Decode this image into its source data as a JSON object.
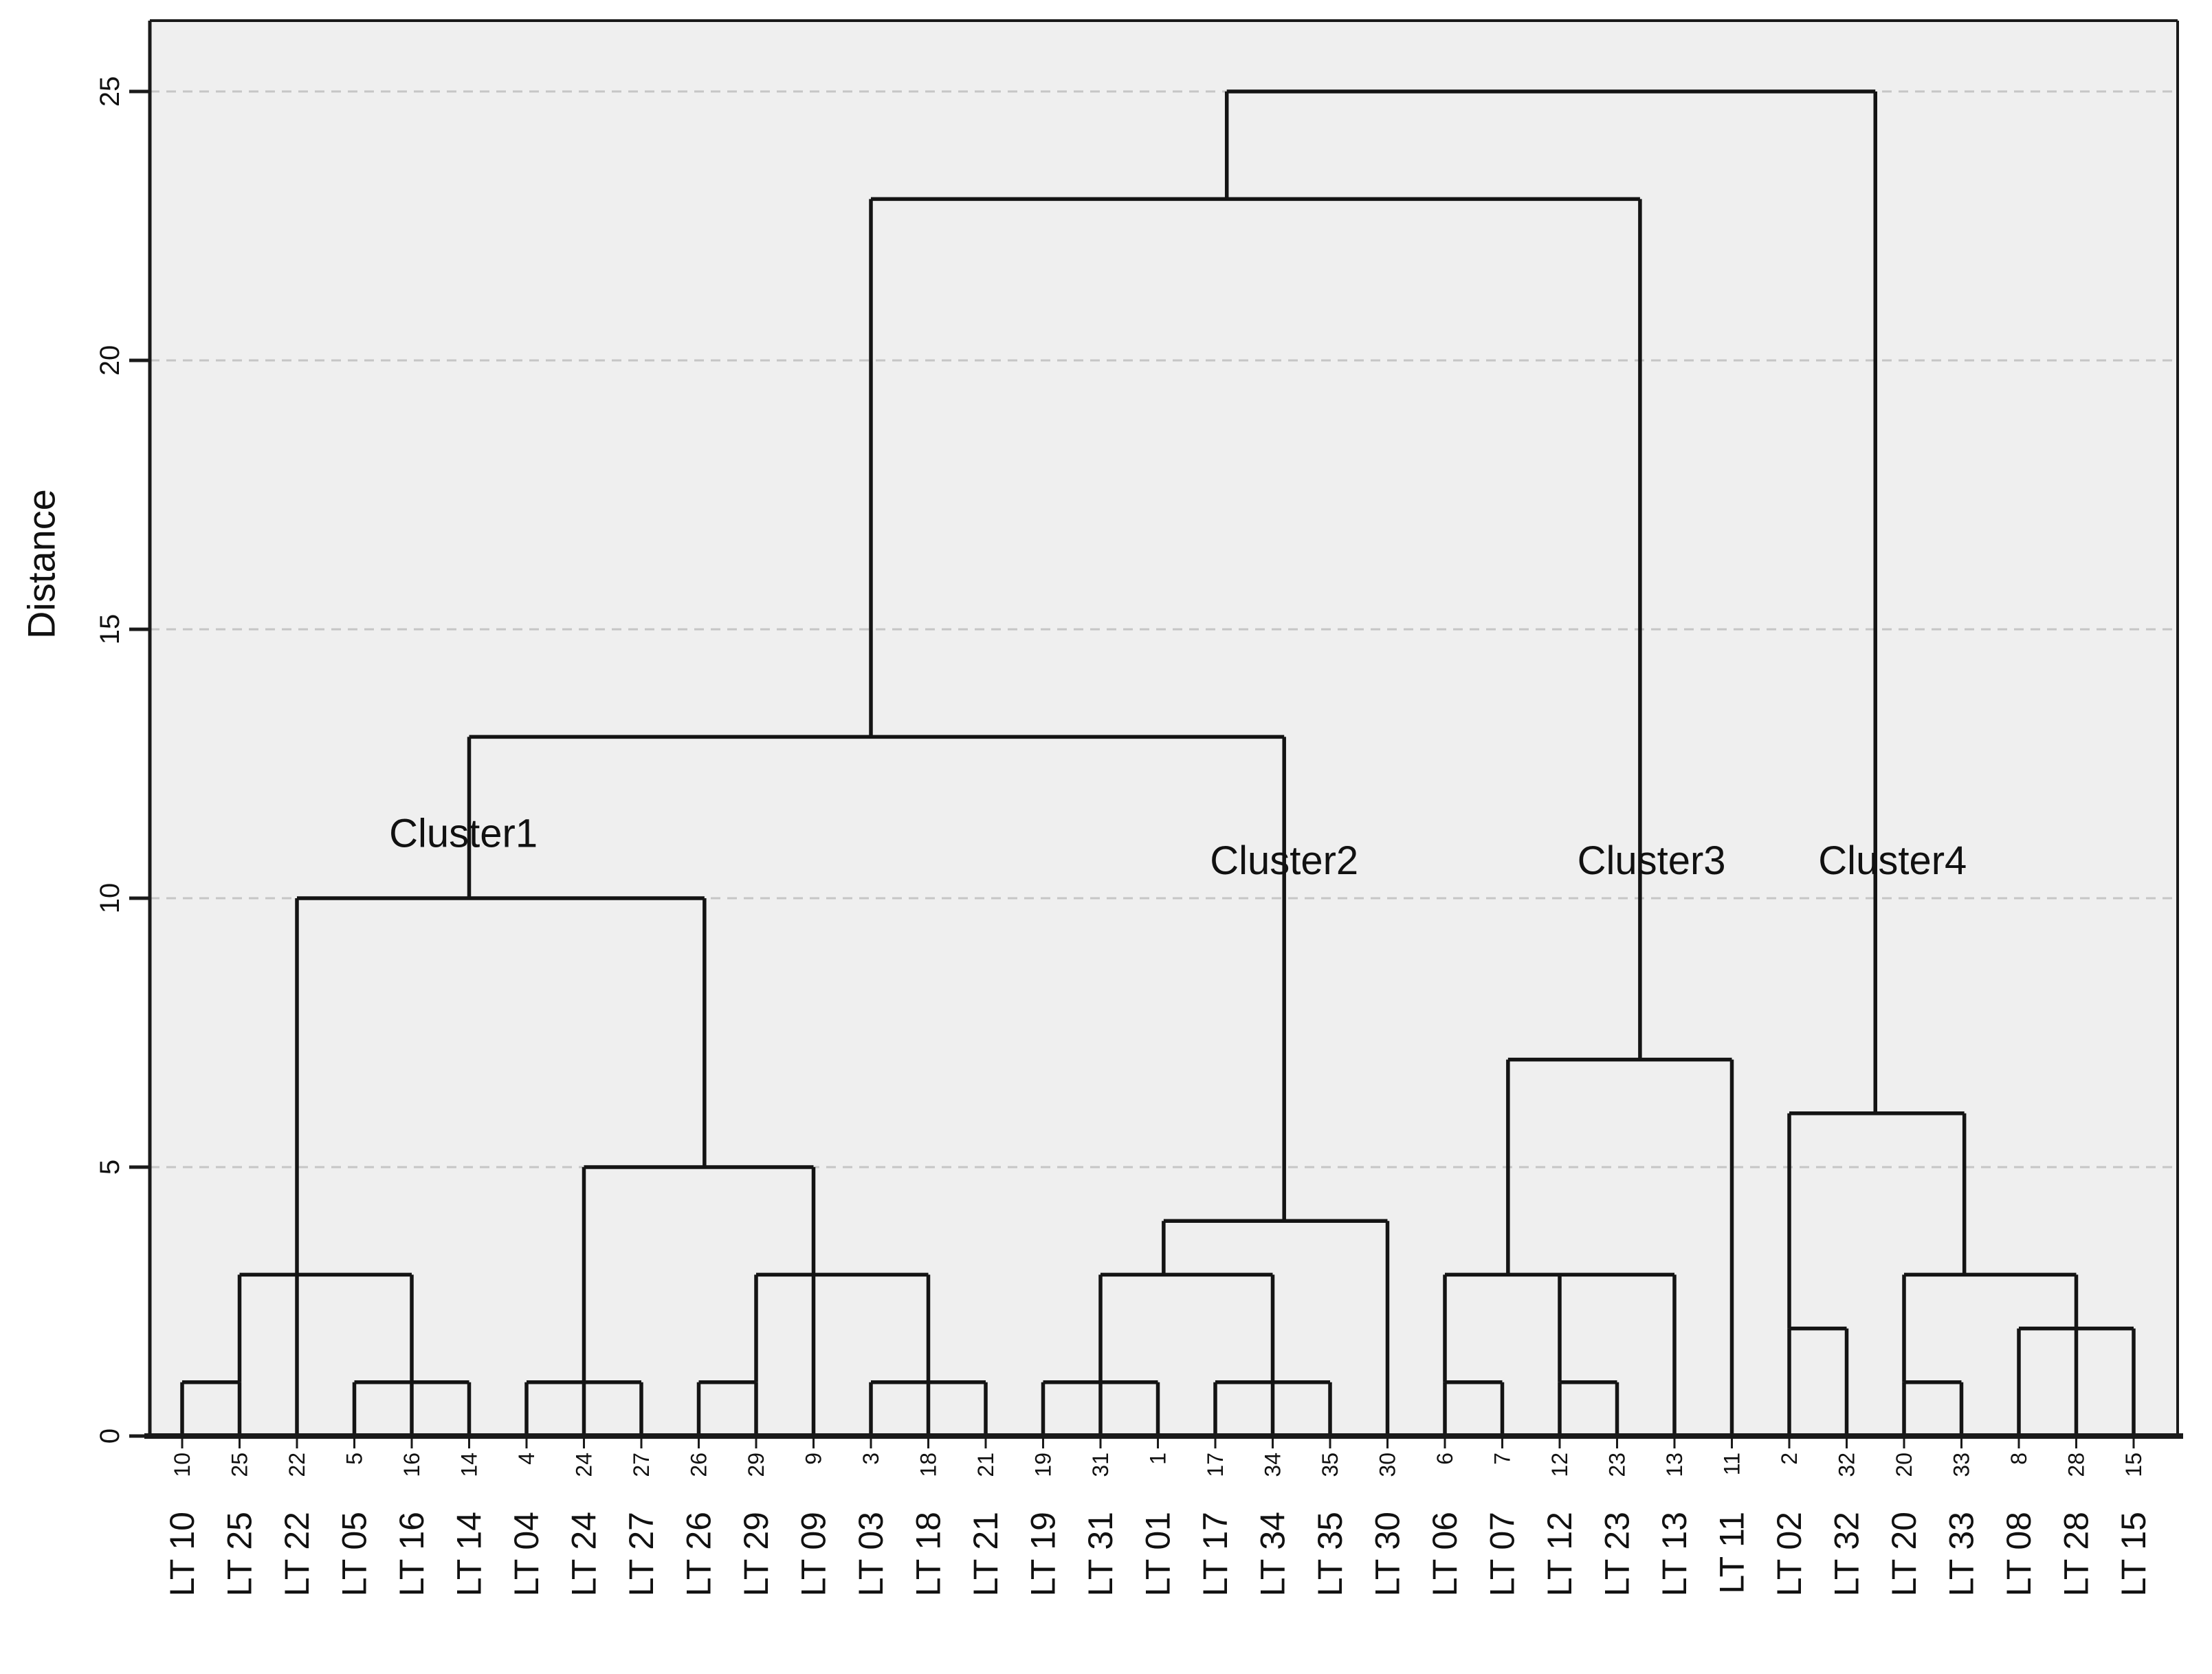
{
  "figure": {
    "kind": "hierarchical-cluster-dendrogram",
    "background_color": "#ffffff",
    "panel_color": "#efefef",
    "line_color": "#141414",
    "grid_color": "#c6c6c6"
  },
  "axis": {
    "y_label": "Distance",
    "y_ticks": [
      0,
      5,
      10,
      15,
      20,
      25
    ],
    "y_gridlines": [
      5,
      10,
      15,
      20,
      25
    ],
    "y_range": [
      0,
      26.3
    ]
  },
  "cluster_labels": [
    {
      "text": "Cluster1",
      "x_index": 5.9,
      "height": 11.2
    },
    {
      "text": "Cluster2",
      "x_index": 20.2,
      "height": 10.7
    },
    {
      "text": "Cluster3",
      "x_index": 26.6,
      "height": 10.7
    },
    {
      "text": "Cluster4",
      "x_index": 30.8,
      "height": 10.7
    }
  ],
  "chart_data": {
    "type": "dendrogram",
    "title": "",
    "xlabel": "",
    "ylabel": "Distance",
    "ylim": [
      0,
      26.3
    ],
    "grid": "dashed horizontal at 5,10,15,20,25",
    "leaves": [
      {
        "label": "LT 10",
        "num": "10",
        "join_height": 1
      },
      {
        "label": "LT 25",
        "num": "25",
        "join_height": 1
      },
      {
        "label": "LT 22",
        "num": "22",
        "join_height": 3
      },
      {
        "label": "LT 05",
        "num": "5",
        "join_height": 1
      },
      {
        "label": "LT 16",
        "num": "16",
        "join_height": 1
      },
      {
        "label": "LT 14",
        "num": "14",
        "join_height": 1
      },
      {
        "label": "LT 04",
        "num": "4",
        "join_height": 1
      },
      {
        "label": "LT 24",
        "num": "24",
        "join_height": 1
      },
      {
        "label": "LT 27",
        "num": "27",
        "join_height": 1
      },
      {
        "label": "LT 26",
        "num": "26",
        "join_height": 1
      },
      {
        "label": "LT 29",
        "num": "29",
        "join_height": 1
      },
      {
        "label": "LT 09",
        "num": "9",
        "join_height": 3
      },
      {
        "label": "LT 03",
        "num": "3",
        "join_height": 1
      },
      {
        "label": "LT 18",
        "num": "18",
        "join_height": 1
      },
      {
        "label": "LT 21",
        "num": "21",
        "join_height": 1
      },
      {
        "label": "LT 19",
        "num": "19",
        "join_height": 1
      },
      {
        "label": "LT 31",
        "num": "31",
        "join_height": 1
      },
      {
        "label": "LT 01",
        "num": "1",
        "join_height": 1
      },
      {
        "label": "LT 17",
        "num": "17",
        "join_height": 1
      },
      {
        "label": "LT 34",
        "num": "34",
        "join_height": 1
      },
      {
        "label": "LT 35",
        "num": "35",
        "join_height": 1
      },
      {
        "label": "LT 30",
        "num": "30",
        "join_height": 4
      },
      {
        "label": "LT 06",
        "num": "6",
        "join_height": 1
      },
      {
        "label": "LT 07",
        "num": "7",
        "join_height": 1
      },
      {
        "label": "LT 12",
        "num": "12",
        "join_height": 1
      },
      {
        "label": "LT 23",
        "num": "23",
        "join_height": 1
      },
      {
        "label": "LT 13",
        "num": "13",
        "join_height": 3
      },
      {
        "label": "LT 11",
        "num": "11",
        "join_height": 7
      },
      {
        "label": "LT 02",
        "num": "2",
        "join_height": 2
      },
      {
        "label": "LT 32",
        "num": "32",
        "join_height": 2
      },
      {
        "label": "LT 20",
        "num": "20",
        "join_height": 1
      },
      {
        "label": "LT 33",
        "num": "33",
        "join_height": 1
      },
      {
        "label": "LT 08",
        "num": "8",
        "join_height": 2
      },
      {
        "label": "LT 28",
        "num": "28",
        "join_height": 2
      },
      {
        "label": "LT 15",
        "num": "15",
        "join_height": 2
      }
    ],
    "merges": [
      {
        "height": 1,
        "from_index": 1,
        "to_index": 2,
        "riser_index": 2,
        "riser_to_height": 3
      },
      {
        "height": 1,
        "from_index": 4,
        "to_index": 6,
        "riser_index": 5,
        "riser_to_height": 3
      },
      {
        "height": 3,
        "from_index": 2,
        "to_index": 5,
        "riser_index": 3,
        "riser_to_height": 10
      },
      {
        "height": 1,
        "from_index": 7,
        "to_index": 9,
        "riser_index": 8,
        "riser_to_height": 5
      },
      {
        "height": 1,
        "from_index": 10,
        "to_index": 11,
        "riser_index": 11,
        "riser_to_height": 3
      },
      {
        "height": 1,
        "from_index": 13,
        "to_index": 15,
        "riser_index": 14,
        "riser_to_height": 3
      },
      {
        "height": 3,
        "from_index": 11,
        "to_index": 14,
        "riser_index": 12,
        "riser_to_height": 5
      },
      {
        "height": 5,
        "from_index": 8,
        "to_index": 12,
        "riser_index": 10.1,
        "riser_to_height": 10
      },
      {
        "height": 10,
        "from_index": 3,
        "to_index": 10.1,
        "riser_index": 6,
        "riser_to_height": 13
      },
      {
        "height": 1,
        "from_index": 16,
        "to_index": 18,
        "riser_index": 17,
        "riser_to_height": 3
      },
      {
        "height": 1,
        "from_index": 19,
        "to_index": 21,
        "riser_index": 20,
        "riser_to_height": 3
      },
      {
        "height": 3,
        "from_index": 17,
        "to_index": 20,
        "riser_index": 18.1,
        "riser_to_height": 4
      },
      {
        "height": 4,
        "from_index": 18.1,
        "to_index": 22,
        "riser_index": 20.2,
        "riser_to_height": 13
      },
      {
        "height": 13,
        "from_index": 6,
        "to_index": 20.2,
        "riser_index": 13,
        "riser_to_height": 23
      },
      {
        "height": 1,
        "from_index": 23,
        "to_index": 24,
        "riser_index": 23,
        "riser_to_height": 3
      },
      {
        "height": 1,
        "from_index": 25,
        "to_index": 26,
        "riser_index": 25,
        "riser_to_height": 3
      },
      {
        "height": 3,
        "from_index": 23,
        "to_index": 27,
        "riser_index": 24.1,
        "riser_to_height": 7
      },
      {
        "height": 7,
        "from_index": 24.1,
        "to_index": 28,
        "riser_index": 26.4,
        "riser_to_height": 23
      },
      {
        "height": 23,
        "from_index": 13,
        "to_index": 26.4,
        "riser_index": 19.2,
        "riser_to_height": 25
      },
      {
        "height": 2,
        "from_index": 29,
        "to_index": 30,
        "riser_index": 29,
        "riser_to_height": 6
      },
      {
        "height": 1,
        "from_index": 31,
        "to_index": 32,
        "riser_index": 31,
        "riser_to_height": 3
      },
      {
        "height": 2,
        "from_index": 33,
        "to_index": 35,
        "riser_index": 34,
        "riser_to_height": 3
      },
      {
        "height": 3,
        "from_index": 31,
        "to_index": 34,
        "riser_index": 32.05,
        "riser_to_height": 6
      },
      {
        "height": 6,
        "from_index": 29,
        "to_index": 32.05,
        "riser_index": 30.5,
        "riser_to_height": 25
      },
      {
        "height": 25,
        "from_index": 19.2,
        "to_index": 30.5,
        "riser_index": null,
        "riser_to_height": null
      }
    ]
  }
}
